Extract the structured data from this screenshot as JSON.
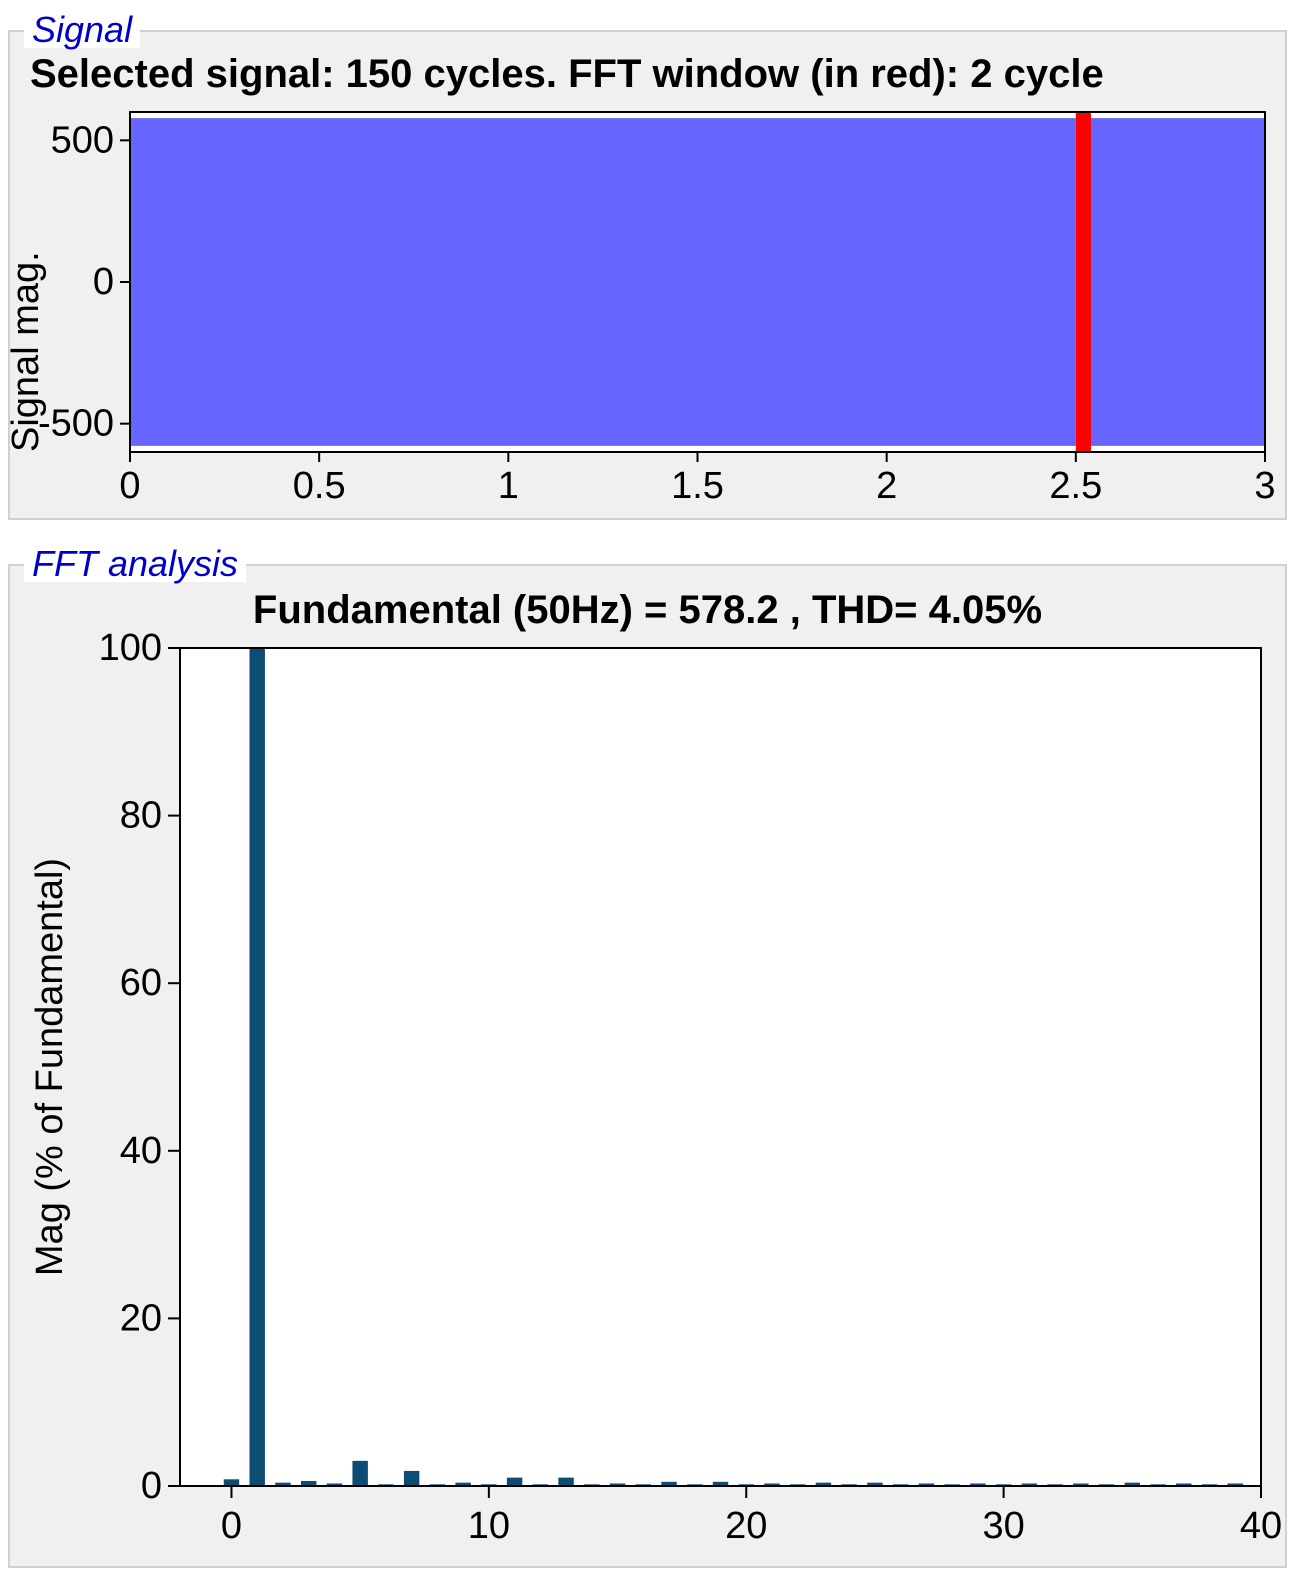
{
  "signal_panel": {
    "legend": "Signal",
    "legend_color": "#0000cc",
    "title": "Selected signal: 150 cycles. FFT window (in red): 2 cycle",
    "title_fontsize": 40,
    "ylabel_fragment": "Signal mag.",
    "chart": {
      "type": "line",
      "xlim": [
        0,
        3
      ],
      "ylim": [
        -600,
        600
      ],
      "xticks": [
        0,
        0.5,
        1,
        1.5,
        2,
        2.5,
        3
      ],
      "yticks": [
        -500,
        0,
        500
      ],
      "xtick_labels": [
        "0",
        "0.5",
        "1",
        "1.5",
        "2",
        "2.5",
        "3"
      ],
      "ytick_labels": [
        "-500",
        "0",
        "500"
      ],
      "tick_fontsize": 38,
      "signal_color": "#0000ff",
      "signal_amplitude": 578.2,
      "signal_frequency_hz": 50,
      "signal_total_time_s": 3,
      "fft_window_color": "#ff0000",
      "fft_window_start_s": 2.5,
      "fft_window_cycles": 2,
      "plot_border_color": "#000000",
      "background_color": "#ffffff"
    }
  },
  "fft_panel": {
    "legend": "FFT analysis",
    "legend_color": "#0000cc",
    "title": "Fundamental (50Hz) = 578.2 , THD= 4.05%",
    "title_fontsize": 40,
    "chart": {
      "type": "bar",
      "xlabel": "",
      "ylabel": "Mag (% of Fundamental)",
      "xlim": [
        -2,
        40
      ],
      "ylim": [
        0,
        100
      ],
      "xticks": [
        0,
        10,
        20,
        30,
        40
      ],
      "yticks": [
        0,
        20,
        40,
        60,
        80,
        100
      ],
      "xtick_labels": [
        "0",
        "10",
        "20",
        "30",
        "40"
      ],
      "ytick_labels": [
        "0",
        "20",
        "40",
        "60",
        "80",
        "100"
      ],
      "tick_fontsize": 38,
      "label_fontsize": 38,
      "bar_color": "#0e4d73",
      "bar_width": 0.6,
      "plot_border_color": "#000000",
      "background_color": "#ffffff",
      "harmonics": [
        {
          "order": 0,
          "mag": 0.8
        },
        {
          "order": 1,
          "mag": 100
        },
        {
          "order": 2,
          "mag": 0.4
        },
        {
          "order": 3,
          "mag": 0.6
        },
        {
          "order": 4,
          "mag": 0.3
        },
        {
          "order": 5,
          "mag": 3.0
        },
        {
          "order": 6,
          "mag": 0.2
        },
        {
          "order": 7,
          "mag": 1.8
        },
        {
          "order": 8,
          "mag": 0.2
        },
        {
          "order": 9,
          "mag": 0.4
        },
        {
          "order": 10,
          "mag": 0.2
        },
        {
          "order": 11,
          "mag": 1.0
        },
        {
          "order": 12,
          "mag": 0.2
        },
        {
          "order": 13,
          "mag": 1.0
        },
        {
          "order": 14,
          "mag": 0.2
        },
        {
          "order": 15,
          "mag": 0.3
        },
        {
          "order": 16,
          "mag": 0.2
        },
        {
          "order": 17,
          "mag": 0.5
        },
        {
          "order": 18,
          "mag": 0.2
        },
        {
          "order": 19,
          "mag": 0.5
        },
        {
          "order": 20,
          "mag": 0.2
        },
        {
          "order": 21,
          "mag": 0.3
        },
        {
          "order": 22,
          "mag": 0.2
        },
        {
          "order": 23,
          "mag": 0.4
        },
        {
          "order": 24,
          "mag": 0.2
        },
        {
          "order": 25,
          "mag": 0.4
        },
        {
          "order": 26,
          "mag": 0.2
        },
        {
          "order": 27,
          "mag": 0.3
        },
        {
          "order": 28,
          "mag": 0.2
        },
        {
          "order": 29,
          "mag": 0.3
        },
        {
          "order": 30,
          "mag": 0.2
        },
        {
          "order": 31,
          "mag": 0.3
        },
        {
          "order": 32,
          "mag": 0.2
        },
        {
          "order": 33,
          "mag": 0.3
        },
        {
          "order": 34,
          "mag": 0.2
        },
        {
          "order": 35,
          "mag": 0.4
        },
        {
          "order": 36,
          "mag": 0.2
        },
        {
          "order": 37,
          "mag": 0.3
        },
        {
          "order": 38,
          "mag": 0.2
        },
        {
          "order": 39,
          "mag": 0.3
        }
      ]
    }
  }
}
